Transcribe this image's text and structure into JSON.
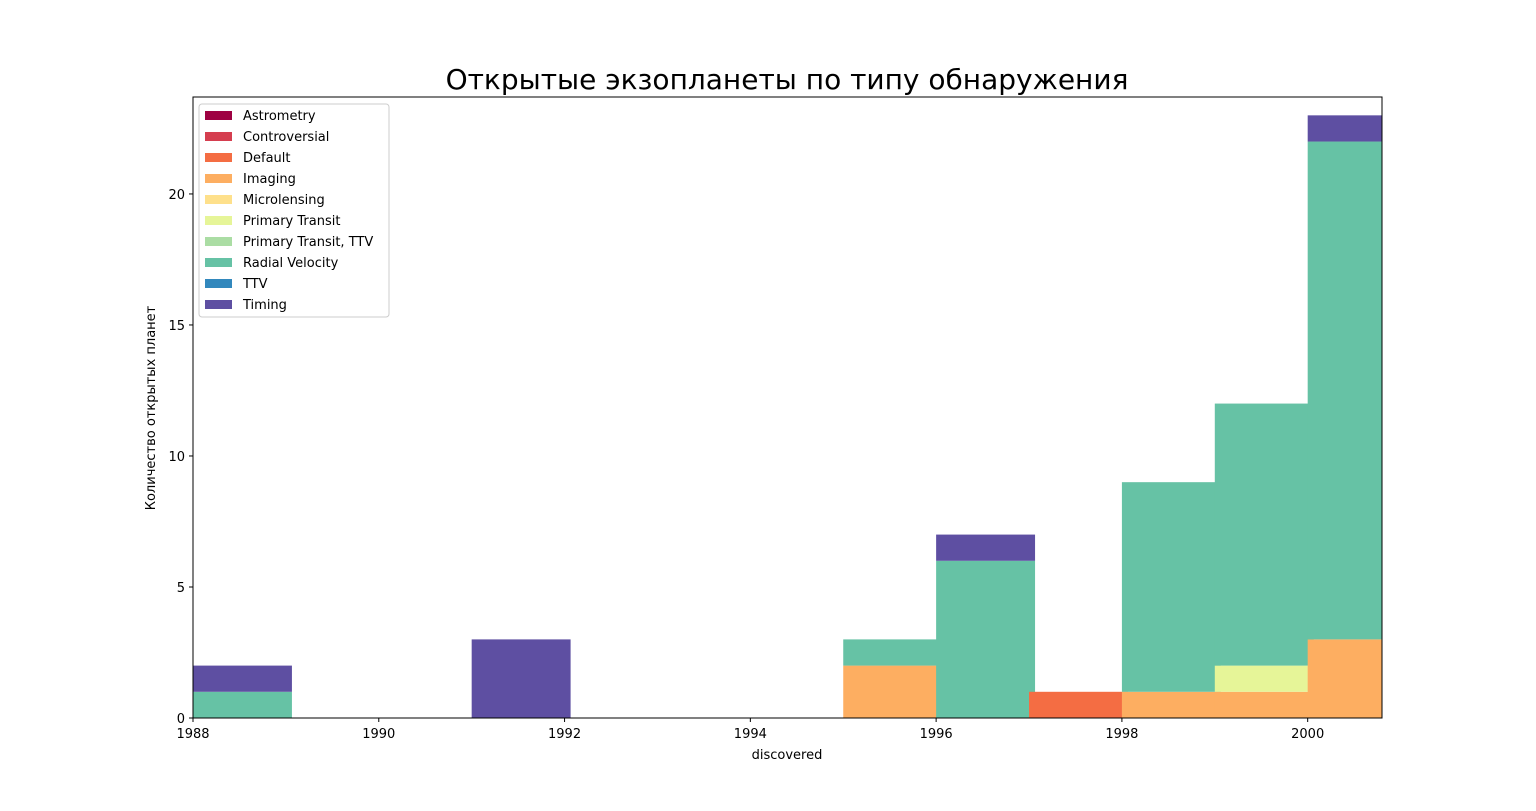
{
  "chart_data": {
    "type": "bar",
    "stacked": true,
    "title": "Открытые экзопланеты по типу обнаружения",
    "xlabel": "discovered",
    "ylabel": "Количество открытых планет",
    "xlim": [
      1988,
      2000.8
    ],
    "ylim": [
      0,
      23.7
    ],
    "bin_width": 1.065,
    "xticks": [
      "1988",
      "1990",
      "1992",
      "1994",
      "1996",
      "1998",
      "2000"
    ],
    "yticks": [
      "0",
      "5",
      "10",
      "15",
      "20"
    ],
    "grid": false,
    "legend_position": "top-left",
    "categories": [
      "1988",
      "1989",
      "1990",
      "1991",
      "1992",
      "1993",
      "1994",
      "1995",
      "1996",
      "1997",
      "1998",
      "1999",
      "2000"
    ],
    "series": [
      {
        "name": "Astrometry",
        "color": "#9e0142",
        "values": [
          0,
          0,
          0,
          0,
          0,
          0,
          0,
          0,
          0,
          0,
          0,
          0,
          0
        ]
      },
      {
        "name": "Controversial",
        "color": "#d53e4f",
        "values": [
          0,
          0,
          0,
          0,
          0,
          0,
          0,
          0,
          0,
          0,
          0,
          0,
          0
        ]
      },
      {
        "name": "Default",
        "color": "#f46d43",
        "values": [
          0,
          0,
          0,
          0,
          0,
          0,
          0,
          0,
          0,
          1,
          0,
          0,
          0
        ]
      },
      {
        "name": "Imaging",
        "color": "#fdae61",
        "values": [
          0,
          0,
          0,
          0,
          0,
          0,
          0,
          2,
          0,
          0,
          1,
          1,
          3
        ]
      },
      {
        "name": "Microlensing",
        "color": "#fee08b",
        "values": [
          0,
          0,
          0,
          0,
          0,
          0,
          0,
          0,
          0,
          0,
          0,
          0,
          0
        ]
      },
      {
        "name": "Primary Transit",
        "color": "#e6f598",
        "values": [
          0,
          0,
          0,
          0,
          0,
          0,
          0,
          0,
          0,
          0,
          0,
          1,
          0
        ]
      },
      {
        "name": "Primary Transit, TTV",
        "color": "#abdda4",
        "values": [
          0,
          0,
          0,
          0,
          0,
          0,
          0,
          0,
          0,
          0,
          0,
          0,
          0
        ]
      },
      {
        "name": "Radial Velocity",
        "color": "#66c2a5",
        "values": [
          1,
          0,
          0,
          0,
          0,
          0,
          0,
          1,
          6,
          0,
          8,
          10,
          19
        ]
      },
      {
        "name": "TTV",
        "color": "#3288bd",
        "values": [
          0,
          0,
          0,
          0,
          0,
          0,
          0,
          0,
          0,
          0,
          0,
          0,
          0
        ]
      },
      {
        "name": "Timing",
        "color": "#5e4fa2",
        "values": [
          1,
          0,
          0,
          3,
          0,
          0,
          0,
          0,
          1,
          0,
          0,
          0,
          1
        ]
      }
    ]
  }
}
